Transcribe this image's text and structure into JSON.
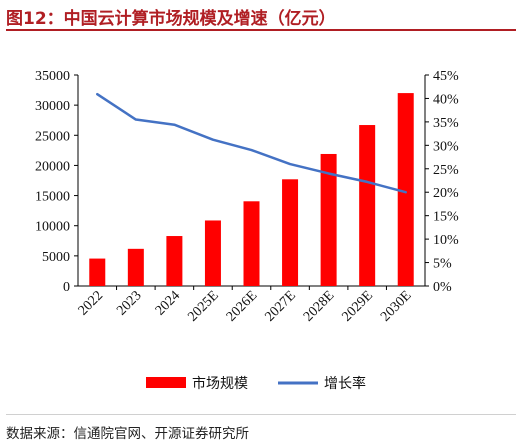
{
  "figure": {
    "title": "图12：中国云计算市场规模及增速（亿元）",
    "source": "数据来源：信通院官网、开源证券研究所"
  },
  "chart_data": {
    "type": "bar",
    "categories": [
      "2022",
      "2023",
      "2024",
      "2025E",
      "2026E",
      "2027E",
      "2028E",
      "2029E",
      "2030E"
    ],
    "series": [
      {
        "name": "市场规模",
        "type": "bar",
        "axis": "left",
        "values": [
          4550,
          6165,
          8288,
          10870,
          14050,
          17700,
          21900,
          26700,
          32000
        ]
      },
      {
        "name": "增长率",
        "type": "line",
        "axis": "right",
        "values": [
          40.9,
          35.5,
          34.4,
          31.2,
          29.0,
          26.0,
          24.0,
          22.2,
          20.0
        ]
      }
    ],
    "left_axis": {
      "ylim": [
        0,
        35000
      ],
      "ticks": [
        "0",
        "5000",
        "10000",
        "15000",
        "20000",
        "25000",
        "30000",
        "35000"
      ]
    },
    "right_axis": {
      "ylim": [
        0,
        45
      ],
      "ticks": [
        "0%",
        "5%",
        "10%",
        "15%",
        "20%",
        "25%",
        "30%",
        "35%",
        "40%",
        "45%"
      ]
    },
    "legend_position": "bottom",
    "grid": false,
    "colors": {
      "bar": "#ff0000",
      "line": "#4472c4",
      "title": "#b01e23"
    }
  }
}
